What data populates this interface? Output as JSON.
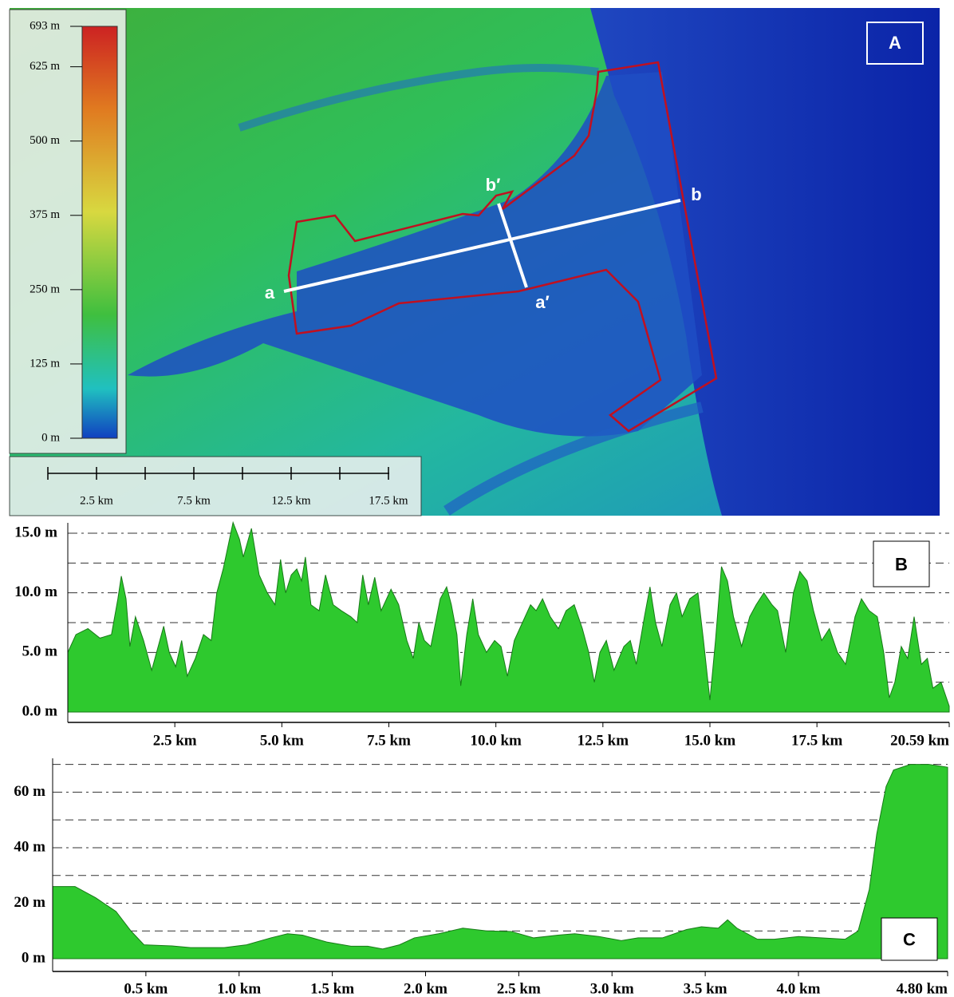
{
  "map": {
    "panel": "A",
    "legend": {
      "ticks": [
        {
          "value": 693,
          "label": "693 m"
        },
        {
          "value": 625,
          "label": "625 m"
        },
        {
          "value": 500,
          "label": "500 m"
        },
        {
          "value": 375,
          "label": "375 m"
        },
        {
          "value": 250,
          "label": "250 m"
        },
        {
          "value": 125,
          "label": "125 m"
        },
        {
          "value": 0,
          "label": "0 m"
        }
      ]
    },
    "scale_bar": {
      "ticks": [
        0,
        2.5,
        5,
        7.5,
        10,
        12.5,
        15,
        17.5
      ],
      "labels": [
        {
          "value": 2.5,
          "label": "2.5 km"
        },
        {
          "value": 7.5,
          "label": "7.5 km"
        },
        {
          "value": 12.5,
          "label": "12.5 km"
        },
        {
          "value": 17.5,
          "label": "17.5 km"
        }
      ]
    },
    "section_labels": [
      "a",
      "b",
      "b′",
      "a′"
    ]
  },
  "chart_data": [
    {
      "type": "area",
      "panel": "B",
      "color": "#2ec92e",
      "x": [
        0,
        0.19,
        0.47,
        0.75,
        1.02,
        1.17,
        1.25,
        1.36,
        1.45,
        1.58,
        1.77,
        1.96,
        2.24,
        2.37,
        2.52,
        2.66,
        2.79,
        2.98,
        3.17,
        3.35,
        3.48,
        3.63,
        3.86,
        4.01,
        4.1,
        4.29,
        4.47,
        4.66,
        4.84,
        4.97,
        5.09,
        5.22,
        5.35,
        5.46,
        5.55,
        5.68,
        5.87,
        6.02,
        6.2,
        6.39,
        6.61,
        6.76,
        6.89,
        7.02,
        7.17,
        7.32,
        7.55,
        7.73,
        7.92,
        8.07,
        8.2,
        8.33,
        8.48,
        8.7,
        8.85,
        8.96,
        9.09,
        9.18,
        9.32,
        9.46,
        9.59,
        9.78,
        9.97,
        10.12,
        10.27,
        10.43,
        10.62,
        10.81,
        10.94,
        11.09,
        11.27,
        11.46,
        11.64,
        11.83,
        12.02,
        12.17,
        12.3,
        12.43,
        12.58,
        12.76,
        12.99,
        13.14,
        13.28,
        13.47,
        13.6,
        13.73,
        13.88,
        14.07,
        14.22,
        14.35,
        14.53,
        14.72,
        14.85,
        15.0,
        15.13,
        15.27,
        15.41,
        15.55,
        15.74,
        15.93,
        16.08,
        16.26,
        16.45,
        16.58,
        16.77,
        16.95,
        17.1,
        17.27,
        17.42,
        17.61,
        17.79,
        17.98,
        18.17,
        18.39,
        18.54,
        18.72,
        18.91,
        19.06,
        19.19,
        19.32,
        19.47,
        19.62,
        19.77,
        19.94,
        20.08,
        20.21,
        20.4,
        20.59
      ],
      "values": [
        5.0,
        6.5,
        7.0,
        6.2,
        6.5,
        9.5,
        11.4,
        9.5,
        5.5,
        8.0,
        6.0,
        3.5,
        7.2,
        5.0,
        3.8,
        6.0,
        3.0,
        4.5,
        6.5,
        6.0,
        10.0,
        12.0,
        15.9,
        14.5,
        13.0,
        15.4,
        11.5,
        10.0,
        9.0,
        12.8,
        10.0,
        11.5,
        12.0,
        11.0,
        13.0,
        9.0,
        8.5,
        11.5,
        9.0,
        8.5,
        8.0,
        7.5,
        11.5,
        9.0,
        11.3,
        8.5,
        10.3,
        9.0,
        6.0,
        4.5,
        7.5,
        6.0,
        5.5,
        9.5,
        10.5,
        9.0,
        6.5,
        2.2,
        6.5,
        9.5,
        6.5,
        5.0,
        6.0,
        5.5,
        3.0,
        6.0,
        7.5,
        9.0,
        8.5,
        9.5,
        8.0,
        7.0,
        8.5,
        9.0,
        7.0,
        5.0,
        2.5,
        5.0,
        6.0,
        3.5,
        5.5,
        6.0,
        4.0,
        8.0,
        10.5,
        7.5,
        5.5,
        9.0,
        10.0,
        8.0,
        9.5,
        10.0,
        6.0,
        1.0,
        6.0,
        12.2,
        11.0,
        8.0,
        5.5,
        8.0,
        9.0,
        10.0,
        9.0,
        8.5,
        5.0,
        10.0,
        11.8,
        11.0,
        8.5,
        6.0,
        7.0,
        5.0,
        4.0,
        8.0,
        9.5,
        8.5,
        8.0,
        5.0,
        1.2,
        2.5,
        5.5,
        4.5,
        8.0,
        4.0,
        4.5,
        2.0,
        2.5,
        0.5
      ],
      "xlim": [
        0,
        20.59
      ],
      "ylim": [
        -0.87,
        15.87
      ],
      "xticks": [
        {
          "value": 2.5,
          "label": "2.5 km"
        },
        {
          "value": 5,
          "label": "5.0 km"
        },
        {
          "value": 7.5,
          "label": "7.5 km"
        },
        {
          "value": 10,
          "label": "10.0 km"
        },
        {
          "value": 12.5,
          "label": "12.5 km"
        },
        {
          "value": 15,
          "label": "15.0 km"
        },
        {
          "value": 17.5,
          "label": "17.5 km"
        },
        {
          "value": 20.59,
          "label": "20.59 km"
        }
      ],
      "yticks": [
        {
          "value": 0,
          "label": "0.0 m"
        },
        {
          "value": 5,
          "label": "5.0 m"
        },
        {
          "value": 10,
          "label": "10.0 m"
        },
        {
          "value": 15,
          "label": "15.0 m"
        }
      ],
      "minor_yticks": [
        2.5,
        7.5,
        12.5
      ]
    },
    {
      "type": "area",
      "panel": "C",
      "color": "#2ec92e",
      "x": [
        0,
        0.12,
        0.23,
        0.34,
        0.42,
        0.49,
        0.57,
        0.64,
        0.74,
        0.92,
        1.04,
        1.17,
        1.26,
        1.34,
        1.47,
        1.6,
        1.69,
        1.77,
        1.86,
        1.94,
        2.07,
        2.2,
        2.33,
        2.46,
        2.58,
        2.71,
        2.8,
        2.93,
        3.05,
        3.14,
        3.27,
        3.4,
        3.48,
        3.57,
        3.62,
        3.67,
        3.78,
        3.87,
        4.0,
        4.12,
        4.25,
        4.32,
        4.38,
        4.42,
        4.47,
        4.51,
        4.6,
        4.7,
        4.8
      ],
      "values": [
        26,
        26,
        22,
        17,
        10,
        5,
        4.8,
        4.6,
        4,
        4,
        5,
        7.5,
        9,
        8.5,
        6,
        4.5,
        4.5,
        3.5,
        5,
        7.5,
        9,
        11,
        10,
        9.8,
        7.5,
        8.5,
        9,
        8,
        6.5,
        7.5,
        7.5,
        10.5,
        11.5,
        11,
        14,
        11,
        7,
        7,
        8,
        7.5,
        7,
        10,
        25,
        45,
        62,
        68,
        70,
        70,
        69
      ],
      "xlim": [
        0,
        4.8
      ],
      "ylim": [
        -4.6,
        72.2
      ],
      "xticks": [
        {
          "value": 0.5,
          "label": "0.5 km"
        },
        {
          "value": 1,
          "label": "1.0 km"
        },
        {
          "value": 1.5,
          "label": "1.5 km"
        },
        {
          "value": 2,
          "label": "2.0 km"
        },
        {
          "value": 2.5,
          "label": "2.5 km"
        },
        {
          "value": 3,
          "label": "3.0 km"
        },
        {
          "value": 3.5,
          "label": "3.5 km"
        },
        {
          "value": 4,
          "label": "4.0 km"
        },
        {
          "value": 4.8,
          "label": "4.80 km"
        }
      ],
      "yticks": [
        {
          "value": 0,
          "label": "0 m"
        },
        {
          "value": 20,
          "label": "20 m"
        },
        {
          "value": 40,
          "label": "40 m"
        },
        {
          "value": 60,
          "label": "60 m"
        }
      ],
      "minor_yticks": [
        10,
        30,
        50,
        70
      ]
    }
  ]
}
